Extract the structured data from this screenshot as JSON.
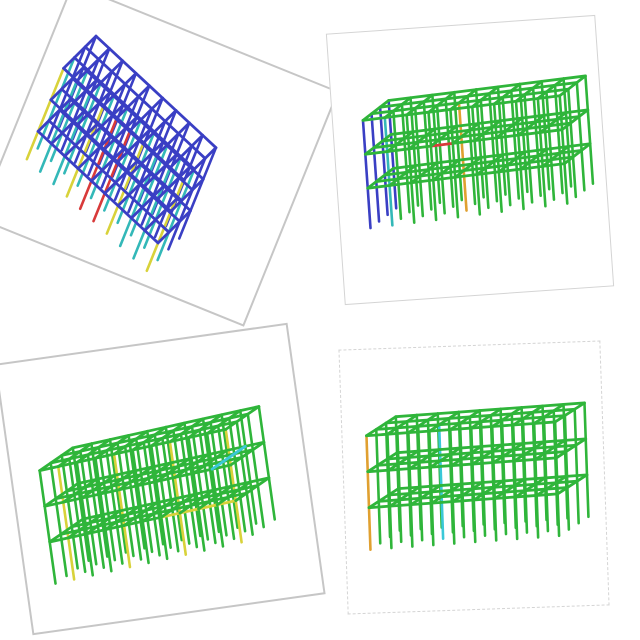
{
  "panels": [
    {
      "id": "p1",
      "name": "frame-model-top-left",
      "palette": "blue"
    },
    {
      "id": "p2",
      "name": "frame-model-top-right",
      "palette": "green"
    },
    {
      "id": "p3",
      "name": "frame-model-bottom-left",
      "palette": "green-yellow"
    },
    {
      "id": "p4",
      "name": "frame-model-bottom-right",
      "palette": "green"
    }
  ],
  "colors": {
    "blue": "#3a3fc4",
    "green": "#2fb53a",
    "teal": "#33b8b8",
    "yellow": "#d8d23a",
    "orange": "#e0a030",
    "red": "#d83a3a",
    "cyan": "#3ac8d8",
    "border": "#c6c6c6"
  }
}
